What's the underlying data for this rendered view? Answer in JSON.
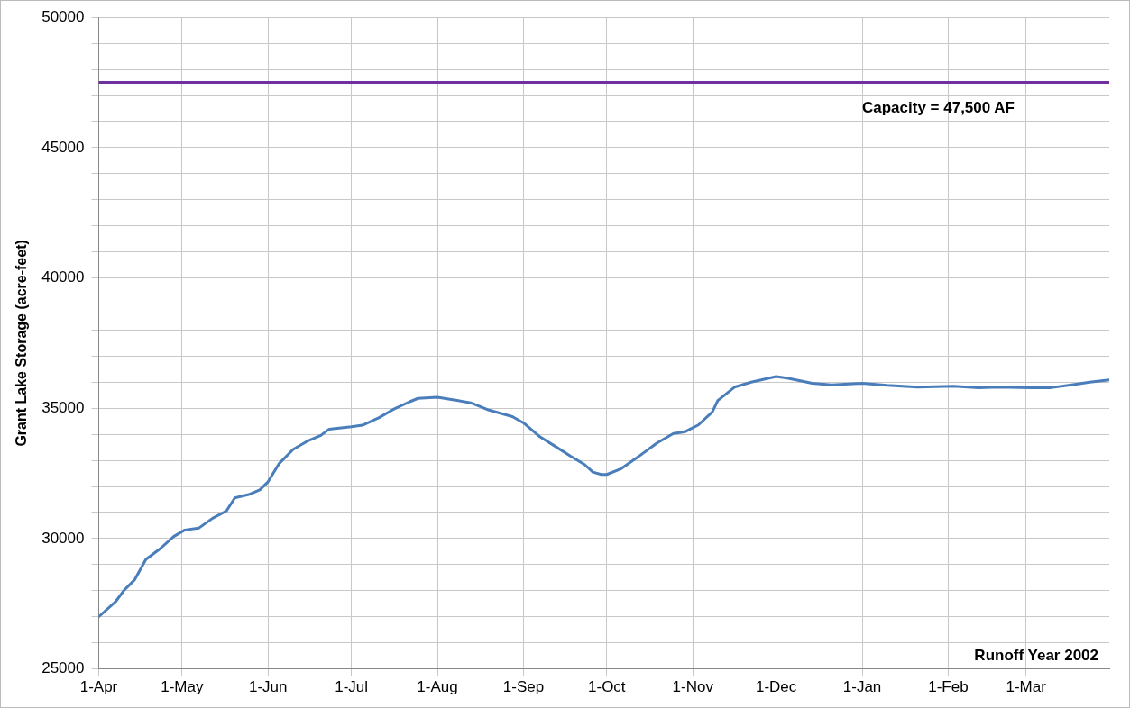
{
  "chart_data": {
    "type": "line",
    "ylabel": "Grant Lake Storage (acre-feet)",
    "x": [
      "2002-04-01",
      "2002-04-07",
      "2002-04-10",
      "2002-04-14",
      "2002-04-18",
      "2002-04-23",
      "2002-04-28",
      "2002-05-02",
      "2002-05-07",
      "2002-05-12",
      "2002-05-17",
      "2002-05-20",
      "2002-05-25",
      "2002-05-29",
      "2002-06-01",
      "2002-06-05",
      "2002-06-10",
      "2002-06-15",
      "2002-06-20",
      "2002-06-23",
      "2002-07-01",
      "2002-07-05",
      "2002-07-11",
      "2002-07-16",
      "2002-07-22",
      "2002-07-25",
      "2002-08-01",
      "2002-08-07",
      "2002-08-13",
      "2002-08-19",
      "2002-08-28",
      "2002-09-01",
      "2002-09-07",
      "2002-09-13",
      "2002-09-18",
      "2002-09-23",
      "2002-09-26",
      "2002-09-29",
      "2002-10-01",
      "2002-10-06",
      "2002-10-13",
      "2002-10-19",
      "2002-10-25",
      "2002-10-29",
      "2002-11-03",
      "2002-11-08",
      "2002-11-10",
      "2002-11-16",
      "2002-11-22",
      "2002-12-01",
      "2002-12-05",
      "2002-12-14",
      "2002-12-21",
      "2003-01-01",
      "2003-01-10",
      "2003-01-21",
      "2003-02-03",
      "2003-02-12",
      "2003-02-19",
      "2003-03-03",
      "2003-03-10",
      "2003-03-18",
      "2003-03-24",
      "2003-03-31"
    ],
    "series": [
      {
        "color": "#4a7ebb",
        "values": [
          27000,
          27570,
          28000,
          28430,
          29200,
          29600,
          30080,
          30330,
          30400,
          30780,
          31060,
          31560,
          31690,
          31870,
          32180,
          32880,
          33420,
          33730,
          33960,
          34200,
          34290,
          34350,
          34640,
          34950,
          35250,
          35380,
          35420,
          35320,
          35210,
          34950,
          34680,
          34440,
          33900,
          33500,
          33160,
          32840,
          32550,
          32460,
          32460,
          32670,
          33190,
          33660,
          34030,
          34090,
          34360,
          34860,
          35300,
          35810,
          36000,
          36220,
          36160,
          35960,
          35900,
          35960,
          35880,
          35810,
          35850,
          35790,
          35810,
          35790,
          35790,
          35910,
          36000,
          36090
        ]
      }
    ],
    "xlim": [
      "2002-04-01",
      "2003-03-31"
    ],
    "xticks": [
      {
        "value": "2002-04-01",
        "label": "1-Apr"
      },
      {
        "value": "2002-05-01",
        "label": "1-May"
      },
      {
        "value": "2002-06-01",
        "label": "1-Jun"
      },
      {
        "value": "2002-07-01",
        "label": "1-Jul"
      },
      {
        "value": "2002-08-01",
        "label": "1-Aug"
      },
      {
        "value": "2002-09-01",
        "label": "1-Sep"
      },
      {
        "value": "2002-10-01",
        "label": "1-Oct"
      },
      {
        "value": "2002-11-01",
        "label": "1-Nov"
      },
      {
        "value": "2002-12-01",
        "label": "1-Dec"
      },
      {
        "value": "2003-01-01",
        "label": "1-Jan"
      },
      {
        "value": "2003-02-01",
        "label": "1-Feb"
      },
      {
        "value": "2003-03-01",
        "label": "1-Mar"
      }
    ],
    "ylim": [
      25000,
      50000
    ],
    "yticks": [
      25000,
      {
        "value": 26000,
        "label": null
      },
      {
        "value": 27000,
        "label": null
      },
      {
        "value": 28000,
        "label": null
      },
      {
        "value": 29000,
        "label": null
      },
      30000,
      {
        "value": 31000,
        "label": null
      },
      {
        "value": 32000,
        "label": null
      },
      {
        "value": 33000,
        "label": null
      },
      {
        "value": 34000,
        "label": null
      },
      35000,
      {
        "value": 36000,
        "label": null
      },
      {
        "value": 37000,
        "label": null
      },
      {
        "value": 38000,
        "label": null
      },
      {
        "value": 39000,
        "label": null
      },
      40000,
      {
        "value": 41000,
        "label": null
      },
      {
        "value": 42000,
        "label": null
      },
      {
        "value": 43000,
        "label": null
      },
      {
        "value": 44000,
        "label": null
      },
      45000,
      {
        "value": 46000,
        "label": null
      },
      {
        "value": 47000,
        "label": null
      },
      {
        "value": 48000,
        "label": null
      },
      {
        "value": 49000,
        "label": null
      },
      50000
    ],
    "ref_lines": [
      {
        "axis": "y",
        "value": 47500,
        "label": "Capacity = 47,500 AF",
        "color": "#7030a0"
      }
    ],
    "annotations": [
      "Runoff Year 2002"
    ],
    "grid": true,
    "legend": false,
    "marker": "none",
    "line_style": "solid"
  }
}
